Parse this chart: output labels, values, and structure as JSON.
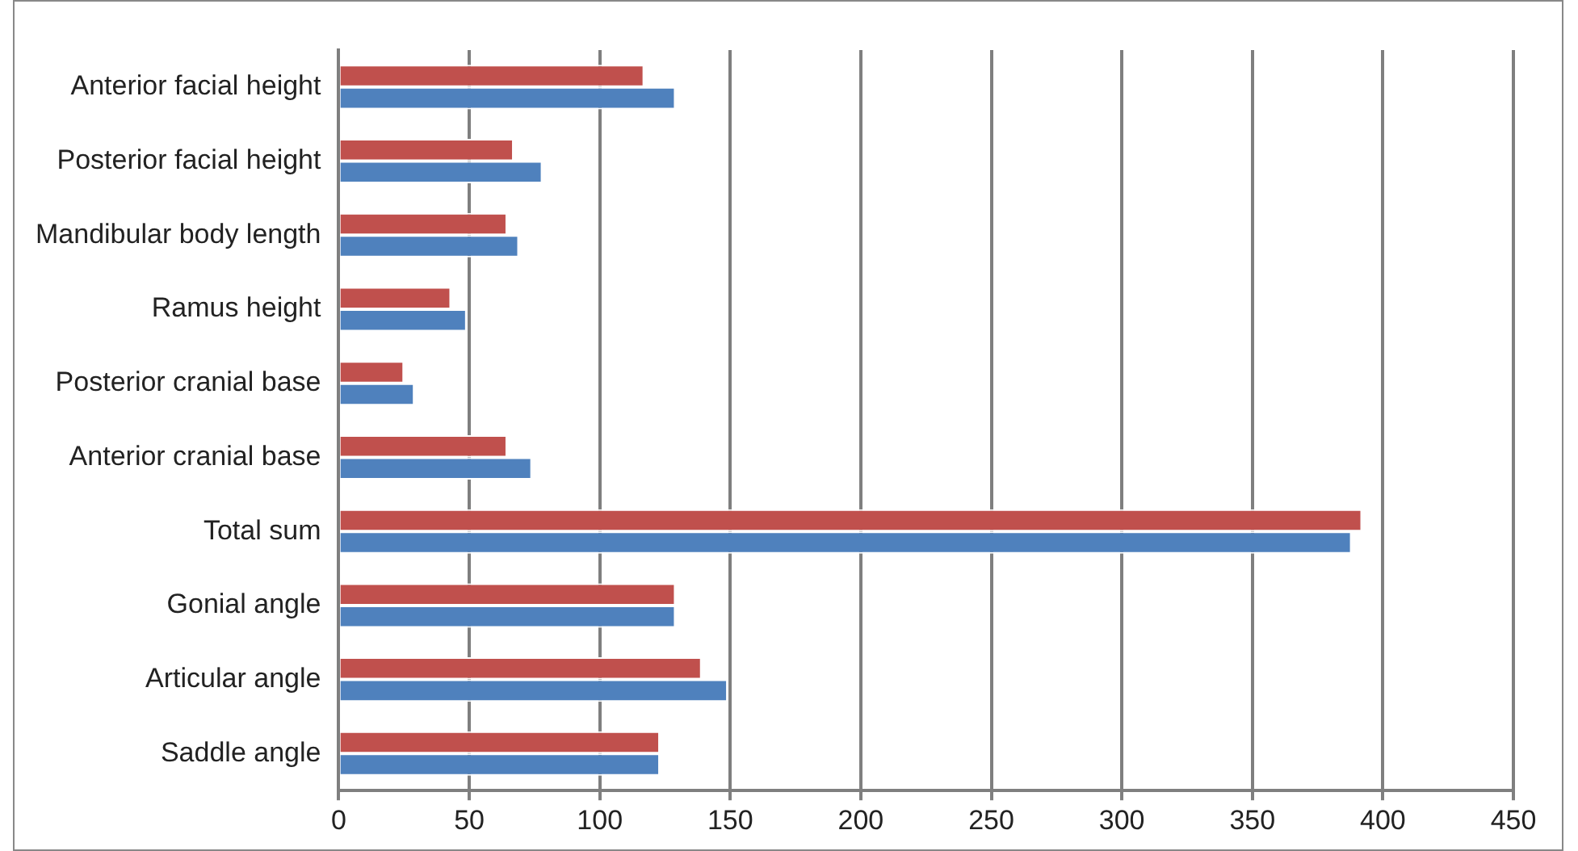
{
  "chart_data": {
    "type": "bar",
    "orientation": "horizontal",
    "categories": [
      "Anterior facial height",
      "Posterior facial height",
      "Mandibular body length",
      "Ramus height",
      "Posterior cranial base",
      "Anterior cranial base",
      "Total sum",
      "Gonial angle",
      "Articular angle",
      "Saddle angle"
    ],
    "series": [
      {
        "color": "#c0504d",
        "values": [
          117,
          67,
          64.5,
          43,
          25,
          64.5,
          392,
          129,
          139,
          123
        ]
      },
      {
        "color": "#4f81bd",
        "values": [
          129,
          78,
          69,
          49,
          29,
          74,
          388,
          129,
          149,
          123
        ]
      }
    ],
    "xlim": [
      0,
      450
    ],
    "xticks": [
      0,
      50,
      100,
      150,
      200,
      250,
      300,
      350,
      400,
      450
    ],
    "grid": "x",
    "legend": false
  }
}
